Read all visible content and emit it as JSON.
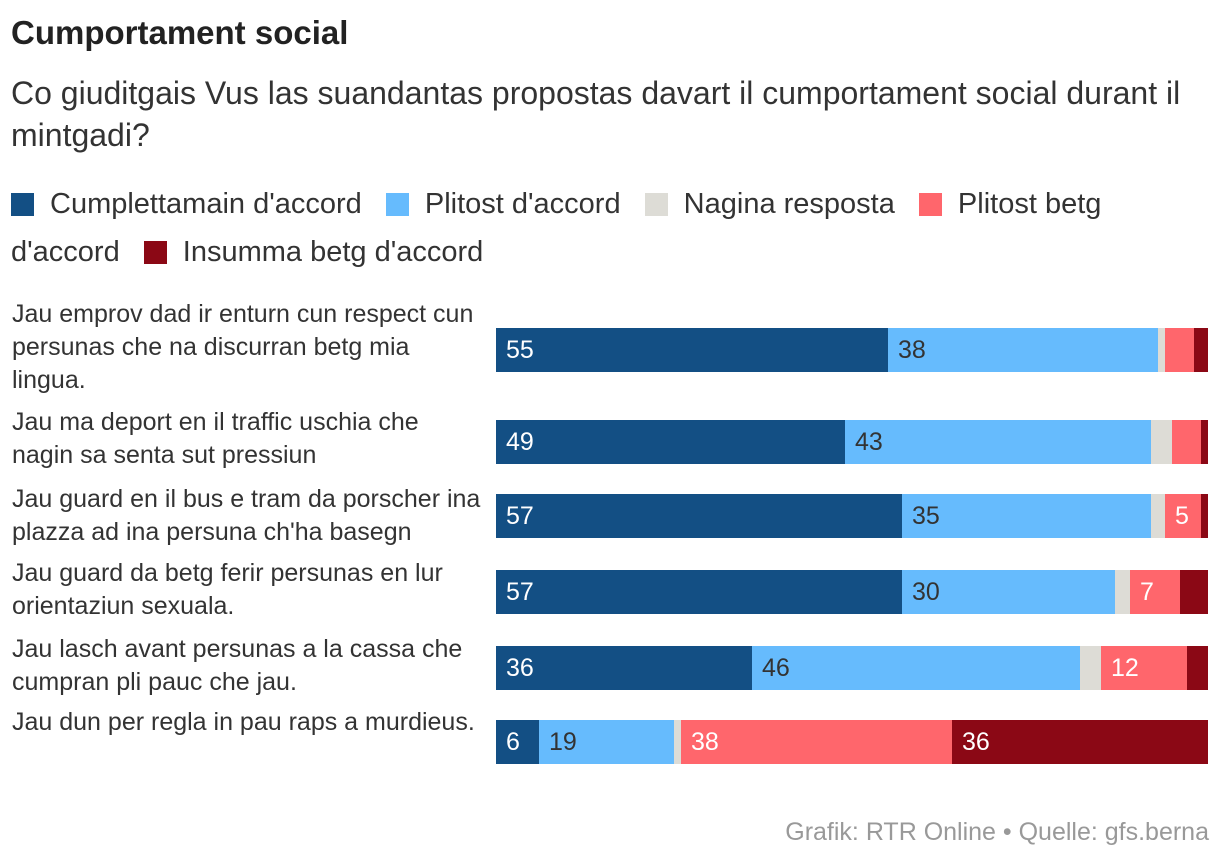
{
  "chart_data": {
    "type": "bar",
    "orientation": "horizontal",
    "stacked": true,
    "title": "Cumportament social",
    "subtitle": "Co giuditgais Vus las suandantas propostas davart il cumportament social durant il mintgadi?",
    "source": "Grafik: RTR Online • Quelle: gfs.berna",
    "xlim": [
      0,
      100
    ],
    "categories": [
      "Jau emprov dad ir enturn cun respect cun persunas che na discurran betg mia lingua.",
      "Jau ma deport en il traffic uschia che nagin sa senta sut pressiun",
      "Jau guard en il bus e tram da porscher ina plazza ad ina persuna ch'ha basegn",
      "Jau guard da betg ferir persunas en lur orientaziun sexuala.",
      "Jau lasch avant persunas a la cassa che cumpran pli pauc che jau.",
      "Jau dun per regla in pau raps a murdieus."
    ],
    "series": [
      {
        "name": "Cumplettamain d'accord",
        "color": "#134f84",
        "text_color": "#ffffff",
        "values": [
          55,
          49,
          57,
          57,
          36,
          6
        ]
      },
      {
        "name": "Plitost d'accord",
        "color": "#66bbfd",
        "text_color": "#333333",
        "values": [
          38,
          43,
          35,
          30,
          46,
          19
        ]
      },
      {
        "name": "Nagina resposta",
        "color": "#dddcd6",
        "text_color": "#333333",
        "values": [
          1,
          3,
          2,
          2,
          3,
          1
        ]
      },
      {
        "name": "Plitost betg d'accord",
        "color": "#ff666c",
        "text_color": "#ffffff",
        "values": [
          4,
          4,
          5,
          7,
          12,
          38
        ]
      },
      {
        "name": "Insumma betg d'accord",
        "color": "#8b0815",
        "text_color": "#ffffff",
        "values": [
          2,
          1,
          1,
          4,
          3,
          36
        ]
      }
    ],
    "label_threshold": 5
  }
}
